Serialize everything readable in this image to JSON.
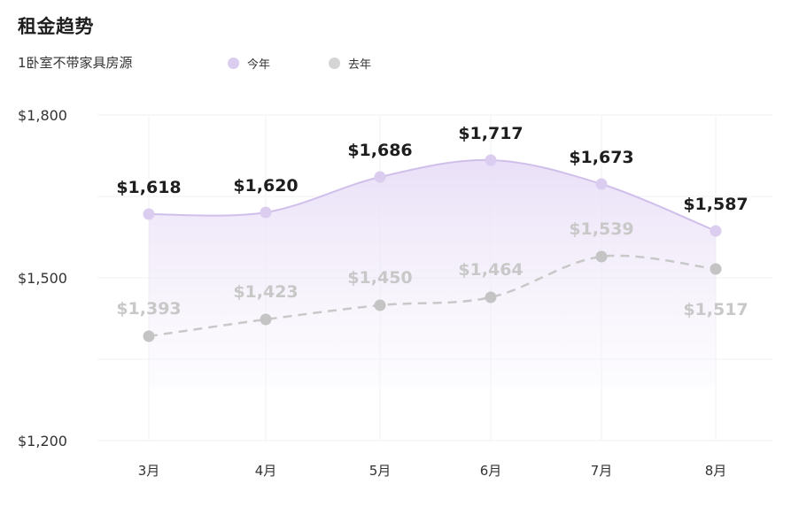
{
  "header": {
    "title": "租金趋势",
    "subtitle": "1卧室不带家具房源"
  },
  "colors": {
    "current_series": "#dbcdef",
    "current_line": "#d0bfea",
    "previous_series": "#c4c4c4",
    "previous_line": "#c8c8c8"
  },
  "chart_data": {
    "type": "line",
    "title": "租金趋势",
    "subtitle": "1卧室不带家具房源",
    "categories": [
      "3月",
      "4月",
      "5月",
      "6月",
      "7月",
      "8月"
    ],
    "series": [
      {
        "name": "今年",
        "values": [
          1618,
          1620,
          1686,
          1717,
          1673,
          1587
        ],
        "labels": [
          "$1,618",
          "$1,620",
          "$1,686",
          "$1,717",
          "$1,673",
          "$1,587"
        ],
        "style": "solid-area"
      },
      {
        "name": "去年",
        "values": [
          1393,
          1423,
          1450,
          1464,
          1539,
          1517
        ],
        "labels": [
          "$1,393",
          "$1,423",
          "$1,450",
          "$1,464",
          "$1,539",
          "$1,517"
        ],
        "style": "dashed"
      }
    ],
    "y_ticks": [
      "$1,800",
      "$1,500",
      "$1,200"
    ],
    "ylim": [
      1200,
      1800
    ],
    "grid": true,
    "legend_position": "top-left"
  }
}
